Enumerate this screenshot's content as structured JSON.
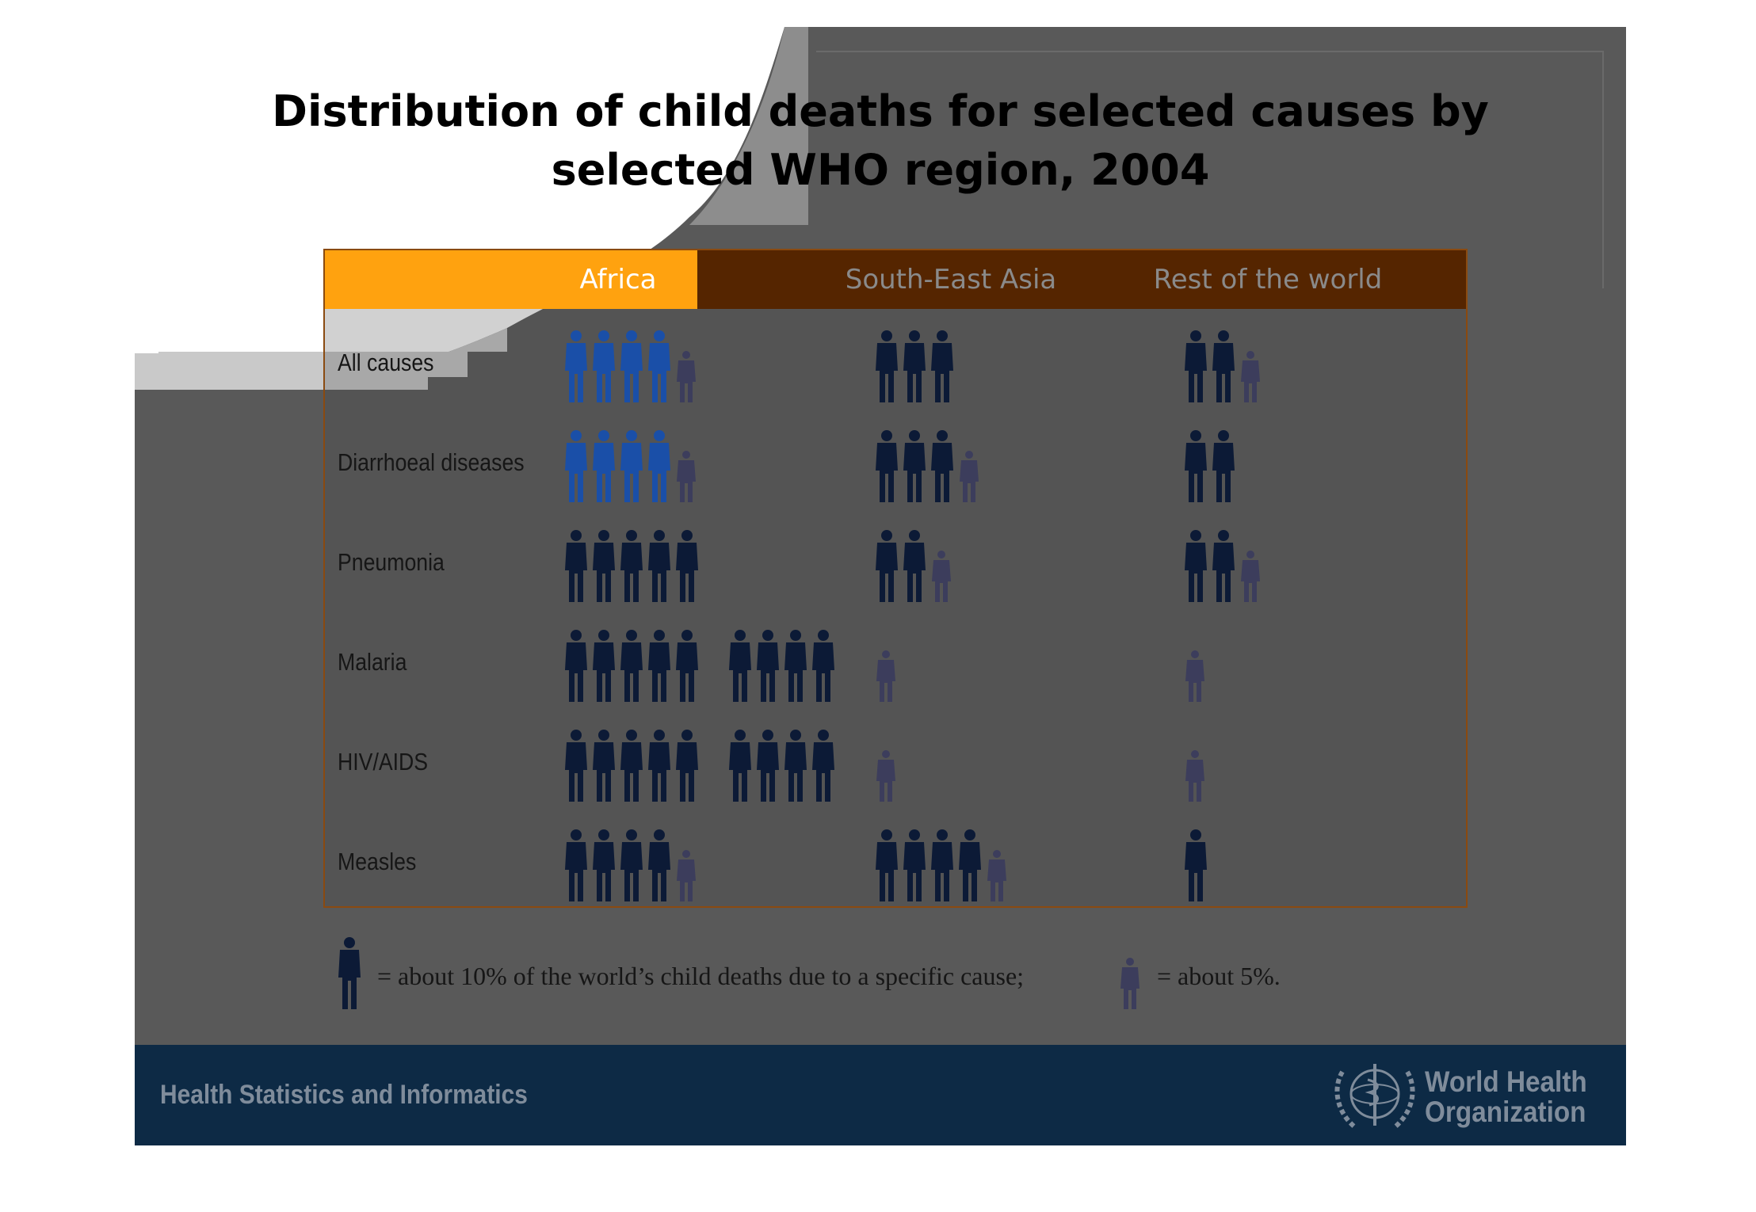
{
  "title": [
    "Distribution of child deaths for selected causes by",
    "selected WHO region, 2004"
  ],
  "chart_data": {
    "type": "pictogram",
    "unit_note": "= about 10% of the world’s child deaths due to a specific cause;",
    "half_unit_note": "= about 5%.",
    "columns": [
      "Africa",
      "South-East Asia",
      "Rest of the world"
    ],
    "rows": [
      "All causes",
      "Diarrhoeal diseases",
      "Pneumonia",
      "Malaria",
      "HIV/AIDS",
      "Measles"
    ],
    "values_percent": {
      "Africa": [
        45,
        45,
        50,
        90,
        90,
        45
      ],
      "South-East Asia": [
        30,
        35,
        25,
        5,
        5,
        45
      ],
      "Rest of the world": [
        25,
        20,
        25,
        5,
        5,
        10
      ]
    },
    "colors": {
      "highlight": "#1a4fa8",
      "full": "#0c1a36",
      "half": "#3c3d5c",
      "africa_header": "#ffa20f",
      "header": "#552500"
    }
  },
  "footer": {
    "text": "Health Statistics and Informatics",
    "org": [
      "World Health",
      "Organization"
    ]
  },
  "icons": {
    "person": "person-icon",
    "half_person": "half-person-icon",
    "who_emblem": "who-emblem-icon"
  }
}
